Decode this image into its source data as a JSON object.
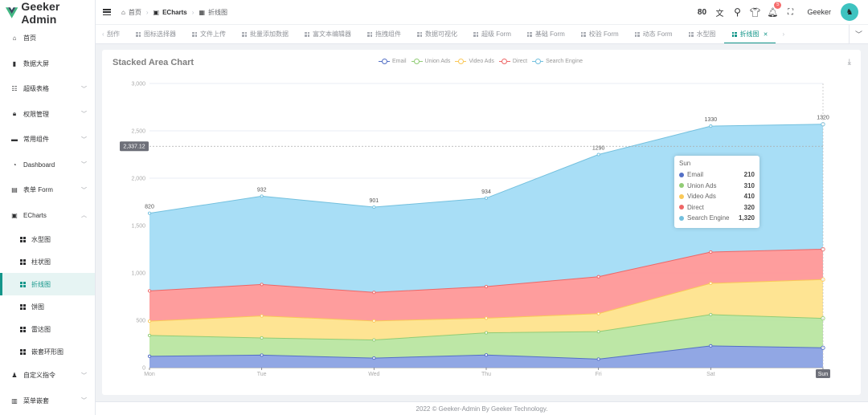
{
  "app": {
    "logo_text": "Geeker Admin",
    "accent_color": "#14968a"
  },
  "sidebar": {
    "items": [
      {
        "label": "首页",
        "icon": "home-icon",
        "expandable": false
      },
      {
        "label": "数据大屏",
        "icon": "bar-chart-icon",
        "expandable": false
      },
      {
        "label": "超级表格",
        "icon": "table-icon",
        "expandable": true
      },
      {
        "label": "权限管理",
        "icon": "lock-icon",
        "expandable": true
      },
      {
        "label": "常用组件",
        "icon": "briefcase-icon",
        "expandable": true
      },
      {
        "label": "Dashboard",
        "icon": "odometer-icon",
        "expandable": true
      },
      {
        "label": "表单 Form",
        "icon": "document-icon",
        "expandable": true
      },
      {
        "label": "ECharts",
        "icon": "chart-icon",
        "expandable": true,
        "expanded": true
      }
    ],
    "echarts_children": [
      {
        "label": "水型图",
        "active": false
      },
      {
        "label": "柱状图",
        "active": false
      },
      {
        "label": "折线图",
        "active": true
      },
      {
        "label": "饼图",
        "active": false
      },
      {
        "label": "雷达图",
        "active": false
      },
      {
        "label": "嵌套环形图",
        "active": false
      }
    ],
    "bottom_items": [
      {
        "label": "自定义指令",
        "icon": "user-icon",
        "expandable": true
      },
      {
        "label": "菜单嵌套",
        "icon": "menu-nest-icon",
        "expandable": true
      }
    ]
  },
  "header": {
    "breadcrumb": [
      {
        "label": "首页",
        "icon": "home-icon"
      },
      {
        "label": "ECharts",
        "icon": "chart-icon"
      },
      {
        "label": "折线图",
        "icon": "grid-icon"
      }
    ],
    "username": "Geeker",
    "notification_count": "5",
    "icons": [
      "size-icon",
      "translate-icon",
      "search-icon",
      "theme-shirt-icon",
      "bell-icon",
      "fullscreen-icon"
    ]
  },
  "tabs": {
    "prev_label": "刮作",
    "items": [
      {
        "label": "图标选择器",
        "active": false
      },
      {
        "label": "文件上传",
        "active": false
      },
      {
        "label": "批量添加数据",
        "active": false
      },
      {
        "label": "富文本编辑器",
        "active": false
      },
      {
        "label": "拖拽组件",
        "active": false
      },
      {
        "label": "数据可视化",
        "active": false
      },
      {
        "label": "超级 Form",
        "active": false
      },
      {
        "label": "基础 Form",
        "active": false
      },
      {
        "label": "校验 Form",
        "active": false
      },
      {
        "label": "动态 Form",
        "active": false
      },
      {
        "label": "水型图",
        "active": false
      },
      {
        "label": "折线图",
        "active": true
      }
    ]
  },
  "chart_data": {
    "type": "area",
    "stacked": true,
    "title": "Stacked Area Chart",
    "categories": [
      "Mon",
      "Tue",
      "Wed",
      "Thu",
      "Fri",
      "Sat",
      "Sun"
    ],
    "series": [
      {
        "name": "Email",
        "color": "#5470c6",
        "fill": "#8ba2e3",
        "values": [
          120,
          132,
          101,
          134,
          90,
          230,
          210
        ]
      },
      {
        "name": "Union Ads",
        "color": "#91cc75",
        "fill": "#b9e6a1",
        "values": [
          220,
          182,
          191,
          234,
          290,
          330,
          310
        ]
      },
      {
        "name": "Video Ads",
        "color": "#fac858",
        "fill": "#fee38d",
        "values": [
          150,
          232,
          201,
          154,
          190,
          330,
          410
        ]
      },
      {
        "name": "Direct",
        "color": "#ee6666",
        "fill": "#fe9898",
        "values": [
          320,
          332,
          301,
          334,
          390,
          330,
          320
        ]
      },
      {
        "name": "Search Engine",
        "color": "#73c0de",
        "fill": "#a3dcf5",
        "values": [
          820,
          932,
          901,
          934,
          1290,
          1330,
          1320
        ],
        "show_labels": true
      }
    ],
    "ylim": [
      0,
      3000
    ],
    "yticks": [
      0,
      500,
      1000,
      1500,
      2000,
      2500,
      3000
    ],
    "ytick_labels": [
      "0",
      "500",
      "1,000",
      "1,500",
      "2,000",
      "2,500",
      "3,000"
    ],
    "grid": true,
    "legend_position": "top-center",
    "crosshair": {
      "y_value_label": "2,337.12",
      "y_value": 2337.12,
      "x_category": "Sun"
    },
    "tooltip": {
      "title": "Sun",
      "rows": [
        {
          "name": "Email",
          "value": "210",
          "color": "#5470c6"
        },
        {
          "name": "Union Ads",
          "value": "310",
          "color": "#91cc75"
        },
        {
          "name": "Video Ads",
          "value": "410",
          "color": "#fac858"
        },
        {
          "name": "Direct",
          "value": "320",
          "color": "#ee6666"
        },
        {
          "name": "Search Engine",
          "value": "1,320",
          "color": "#73c0de"
        }
      ]
    }
  },
  "footer": {
    "text": "2022 © Geeker-Admin By Geeker Technology."
  }
}
